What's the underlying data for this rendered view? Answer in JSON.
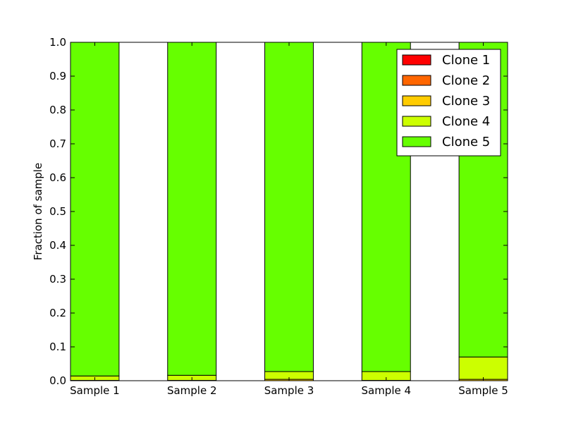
{
  "chart_data": {
    "type": "bar",
    "stacked": true,
    "categories": [
      "Sample 1",
      "Sample 2",
      "Sample 3",
      "Sample 4",
      "Sample 5"
    ],
    "series": [
      {
        "name": "Clone 1",
        "color": "#ff0000",
        "values": [
          0.0,
          0.0,
          0.0,
          0.0,
          0.0
        ]
      },
      {
        "name": "Clone 2",
        "color": "#ff6600",
        "values": [
          0.0,
          0.0,
          0.0,
          0.0,
          0.0
        ]
      },
      {
        "name": "Clone 3",
        "color": "#ffcc00",
        "values": [
          0.001,
          0.001,
          0.004,
          0.001,
          0.004
        ]
      },
      {
        "name": "Clone 4",
        "color": "#ccff00",
        "values": [
          0.013,
          0.015,
          0.023,
          0.026,
          0.066
        ]
      },
      {
        "name": "Clone 5",
        "color": "#66ff00",
        "values": [
          0.986,
          0.984,
          0.973,
          0.973,
          0.93
        ]
      }
    ],
    "title": "",
    "xlabel": "",
    "ylabel": "Fraction of sample",
    "ylim": [
      0,
      1.0
    ],
    "yticks": [
      "0.0",
      "0.1",
      "0.2",
      "0.3",
      "0.4",
      "0.5",
      "0.6",
      "0.7",
      "0.8",
      "0.9",
      "1.0"
    ],
    "grid": false,
    "legend_position": "top-right"
  }
}
